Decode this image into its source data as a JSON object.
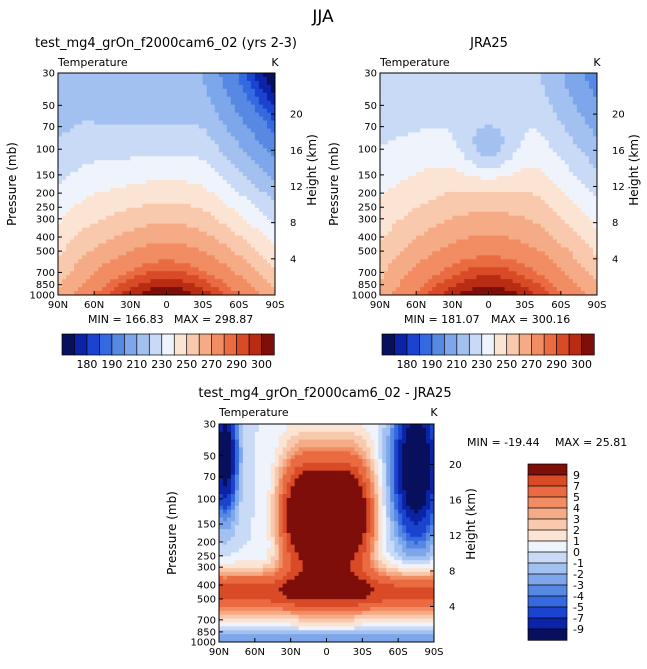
{
  "title": "JJA",
  "colors": {
    "blue_red_ramp": [
      "#08105e",
      "#0b23a6",
      "#1a44cf",
      "#3469df",
      "#5789e3",
      "#7da7ea",
      "#a3c1f0",
      "#c9daf7",
      "#eef3fc",
      "#fbe4d4",
      "#f8c9ad",
      "#f5ab86",
      "#f18c63",
      "#ea6a41",
      "#d94a26",
      "#b92c14",
      "#7e0e0a"
    ]
  },
  "chart_data": [
    {
      "id": "model",
      "type": "heatmap",
      "title": "test_mg4_grOn_f2000cam6_02 (yrs 2-3)",
      "variable": "Temperature",
      "units": "K",
      "ylabel": "Pressure (mb)",
      "ylabel_right": "Height (km)",
      "x_ticks": [
        "90N",
        "60N",
        "30N",
        "0",
        "30S",
        "60S",
        "90S"
      ],
      "y_ticks": [
        30,
        50,
        70,
        100,
        150,
        200,
        250,
        300,
        400,
        500,
        700,
        850,
        1000
      ],
      "y_ticks_right": [
        4,
        8,
        12,
        16,
        20
      ],
      "stats": {
        "min": "MIN = 166.83",
        "max": "MAX = 298.87"
      },
      "colorbar_labels": [
        "180",
        "190",
        "210",
        "230",
        "250",
        "270",
        "290",
        "300"
      ],
      "min": 166.83,
      "max": 298.87
    },
    {
      "id": "obs",
      "type": "heatmap",
      "title": "JRA25",
      "variable": "Temperature",
      "units": "K",
      "ylabel": "Pressure (mb)",
      "ylabel_right": "Height (km)",
      "x_ticks": [
        "90N",
        "60N",
        "30N",
        "0",
        "30S",
        "60S",
        "90S"
      ],
      "y_ticks": [
        30,
        50,
        70,
        100,
        150,
        200,
        250,
        300,
        400,
        500,
        700,
        850,
        1000
      ],
      "y_ticks_right": [
        4,
        8,
        12,
        16,
        20
      ],
      "stats": {
        "min": "MIN = 181.07",
        "max": "MAX = 300.16"
      },
      "colorbar_labels": [
        "180",
        "190",
        "210",
        "230",
        "250",
        "270",
        "290",
        "300"
      ],
      "min": 181.07,
      "max": 300.16
    },
    {
      "id": "diff",
      "type": "heatmap",
      "title": "test_mg4_grOn_f2000cam6_02 - JRA25",
      "variable": "Temperature",
      "units": "K",
      "ylabel": "Pressure (mb)",
      "ylabel_right": "Height (km)",
      "x_ticks": [
        "90N",
        "60N",
        "30N",
        "0",
        "30S",
        "60S",
        "90S"
      ],
      "y_ticks": [
        30,
        50,
        70,
        100,
        150,
        200,
        250,
        300,
        400,
        500,
        700,
        850,
        1000
      ],
      "y_ticks_right": [
        4,
        8,
        12,
        16,
        20
      ],
      "stats": {
        "min": "MIN = -19.44",
        "max": "MAX =  25.81"
      },
      "colorbar_labels": [
        "9",
        "7",
        "5",
        "4",
        "3",
        "2",
        "1",
        "0",
        "-1",
        "-2",
        "-3",
        "-4",
        "-5",
        "-7",
        "-9"
      ],
      "min": -19.44,
      "max": 25.81
    }
  ]
}
